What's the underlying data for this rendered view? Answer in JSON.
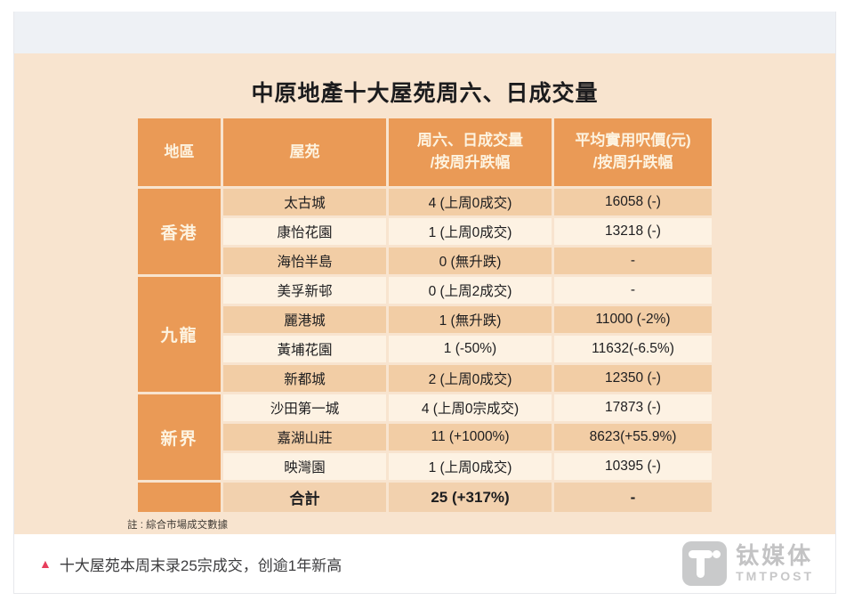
{
  "chart_data": {
    "type": "table",
    "title": "中原地產十大屋苑周六、日成交量",
    "note": "註 : 綜合市場成交數據",
    "columns": [
      "地區",
      "屋苑",
      "周六、日成交量/按周升跌幅",
      "平均實用呎價(元)/按周升跌幅"
    ],
    "header": {
      "region": "地區",
      "estate": "屋苑",
      "volume_line1": "周六、日成交量",
      "volume_line2": "/按周升跌幅",
      "price_line1": "平均實用呎價(元)",
      "price_line2": "/按周升跌幅"
    },
    "regions": [
      {
        "name": "香港",
        "span": 3
      },
      {
        "name": "九龍",
        "span": 4
      },
      {
        "name": "新界",
        "span": 3
      }
    ],
    "rows": [
      {
        "region": "香港",
        "estate": "太古城",
        "volume": "4 (上周0成交)",
        "price": "16058 (-)"
      },
      {
        "region": "香港",
        "estate": "康怡花園",
        "volume": "1 (上周0成交)",
        "price": "13218 (-)"
      },
      {
        "region": "香港",
        "estate": "海怡半島",
        "volume": "0 (無升跌)",
        "price": "-"
      },
      {
        "region": "九龍",
        "estate": "美孚新邨",
        "volume": "0 (上周2成交)",
        "price": "-"
      },
      {
        "region": "九龍",
        "estate": "麗港城",
        "volume": "1 (無升跌)",
        "price": "11000 (-2%)"
      },
      {
        "region": "九龍",
        "estate": "黃埔花園",
        "volume": "1 (-50%)",
        "price": "11632(-6.5%)"
      },
      {
        "region": "九龍",
        "estate": "新都城",
        "volume": "2 (上周0成交)",
        "price": "12350 (-)"
      },
      {
        "region": "新界",
        "estate": "沙田第一城",
        "volume": "4 (上周0宗成交)",
        "price": "17873 (-)"
      },
      {
        "region": "新界",
        "estate": "嘉湖山莊",
        "volume": "11 (+1000%)",
        "price": "8623(+55.9%)"
      },
      {
        "region": "新界",
        "estate": "映灣園",
        "volume": "1 (上周0成交)",
        "price": "10395 (-)"
      }
    ],
    "total": {
      "label": "合計",
      "volume": "25 (+317%)",
      "price": "-"
    },
    "colors": {
      "header_bg": "#ea9a56",
      "header_text": "#fdf3e0",
      "row_dark": "#f2cda5",
      "row_light": "#fdf2e3",
      "panel_bg": "#f8e4cf"
    }
  },
  "footer": {
    "headline": "十大屋苑本周末录25宗成交，创逾1年新高",
    "triangle": "▲",
    "triangle_color": "#e73e5c",
    "logo_cn": "钛媒体",
    "logo_en": "TMTPOST"
  }
}
